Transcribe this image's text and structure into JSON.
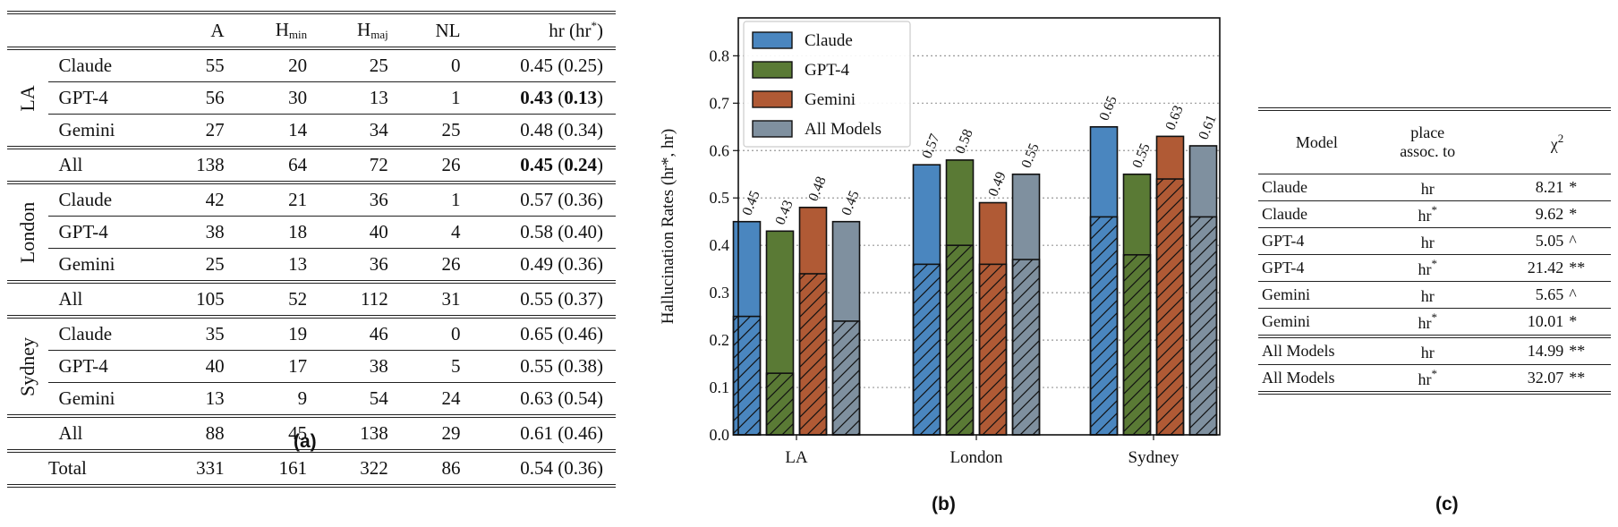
{
  "panel_a": {
    "caption": "(a)",
    "headers": {
      "a": "A",
      "hmin_main": "H",
      "hmin_sub": "min",
      "hmaj_main": "H",
      "hmaj_sub": "maj",
      "nl": "NL",
      "hr_main": "hr (hr",
      "hr_star": "*",
      "hr_close": ")"
    },
    "groups": [
      {
        "label": "LA",
        "rows": [
          {
            "model": "Claude",
            "a": "55",
            "hmin": "20",
            "hmaj": "25",
            "nl": "0",
            "hr": "0.45",
            "hrs": "0.25",
            "bold": false
          },
          {
            "model": "GPT-4",
            "a": "56",
            "hmin": "30",
            "hmaj": "13",
            "nl": "1",
            "hr": "0.43",
            "hrs": "0.13",
            "bold": true
          },
          {
            "model": "Gemini",
            "a": "27",
            "hmin": "14",
            "hmaj": "34",
            "nl": "25",
            "hr": "0.48",
            "hrs": "0.34",
            "bold": false
          },
          {
            "model": "All",
            "a": "138",
            "hmin": "64",
            "hmaj": "72",
            "nl": "26",
            "hr": "0.45",
            "hrs": "0.24",
            "bold": true
          }
        ]
      },
      {
        "label": "London",
        "rows": [
          {
            "model": "Claude",
            "a": "42",
            "hmin": "21",
            "hmaj": "36",
            "nl": "1",
            "hr": "0.57",
            "hrs": "0.36",
            "bold": false
          },
          {
            "model": "GPT-4",
            "a": "38",
            "hmin": "18",
            "hmaj": "40",
            "nl": "4",
            "hr": "0.58",
            "hrs": "0.40",
            "bold": false
          },
          {
            "model": "Gemini",
            "a": "25",
            "hmin": "13",
            "hmaj": "36",
            "nl": "26",
            "hr": "0.49",
            "hrs": "0.36",
            "bold": false
          },
          {
            "model": "All",
            "a": "105",
            "hmin": "52",
            "hmaj": "112",
            "nl": "31",
            "hr": "0.55",
            "hrs": "0.37",
            "bold": false
          }
        ]
      },
      {
        "label": "Sydney",
        "rows": [
          {
            "model": "Claude",
            "a": "35",
            "hmin": "19",
            "hmaj": "46",
            "nl": "0",
            "hr": "0.65",
            "hrs": "0.46",
            "bold": false
          },
          {
            "model": "GPT-4",
            "a": "40",
            "hmin": "17",
            "hmaj": "38",
            "nl": "5",
            "hr": "0.55",
            "hrs": "0.38",
            "bold": false
          },
          {
            "model": "Gemini",
            "a": "13",
            "hmin": "9",
            "hmaj": "54",
            "nl": "24",
            "hr": "0.63",
            "hrs": "0.54",
            "bold": false
          },
          {
            "model": "All",
            "a": "88",
            "hmin": "45",
            "hmaj": "138",
            "nl": "29",
            "hr": "0.61",
            "hrs": "0.46",
            "bold": false
          }
        ]
      }
    ],
    "total": {
      "model": "Total",
      "a": "331",
      "hmin": "161",
      "hmaj": "322",
      "nl": "86",
      "hr": "0.54",
      "hrs": "0.36"
    }
  },
  "chart_data": {
    "type": "bar",
    "caption": "(b)",
    "ylabel": "Hallucination Rates (hr*, hr)",
    "ylim": [
      0,
      0.88
    ],
    "yticks": [
      "0.0",
      "0.1",
      "0.2",
      "0.3",
      "0.4",
      "0.5",
      "0.6",
      "0.7",
      "0.8"
    ],
    "categories": [
      "LA",
      "London",
      "Sydney"
    ],
    "series": [
      {
        "name": "Claude",
        "color": "#4a86bf",
        "values": [
          0.45,
          0.57,
          0.65
        ],
        "hatched_values": [
          0.25,
          0.36,
          0.46
        ],
        "labels": [
          "0.45",
          "0.57",
          "0.65"
        ]
      },
      {
        "name": "GPT-4",
        "color": "#5a7a35",
        "values": [
          0.43,
          0.58,
          0.55
        ],
        "hatched_values": [
          0.13,
          0.4,
          0.38
        ],
        "labels": [
          "0.43",
          "0.58",
          "0.55"
        ]
      },
      {
        "name": "Gemini",
        "color": "#b05a35",
        "values": [
          0.48,
          0.49,
          0.63
        ],
        "hatched_values": [
          0.34,
          0.36,
          0.54
        ],
        "labels": [
          "0.48",
          "0.49",
          "0.63"
        ]
      },
      {
        "name": "All Models",
        "color": "#7f909f",
        "values": [
          0.45,
          0.55,
          0.61
        ],
        "hatched_values": [
          0.24,
          0.37,
          0.46
        ],
        "labels": [
          "0.45",
          "0.55",
          "0.61"
        ]
      }
    ],
    "grid": "horizontal dotted",
    "legend": "top-left"
  },
  "panel_c": {
    "caption": "(c)",
    "headers": {
      "model": "Model",
      "place1": "place",
      "place2": "assoc. to",
      "chi": "χ",
      "chi_sup": "2"
    },
    "rows": [
      {
        "model": "Claude",
        "place": "hr",
        "star": "",
        "chi": "8.21",
        "sig": "*"
      },
      {
        "model": "Claude",
        "place": "hr",
        "star": "*",
        "chi": "9.62",
        "sig": "*"
      },
      {
        "model": "GPT-4",
        "place": "hr",
        "star": "",
        "chi": "5.05",
        "sig": "^"
      },
      {
        "model": "GPT-4",
        "place": "hr",
        "star": "*",
        "chi": "21.42",
        "sig": "**"
      },
      {
        "model": "Gemini",
        "place": "hr",
        "star": "",
        "chi": "5.65",
        "sig": "^"
      },
      {
        "model": "Gemini",
        "place": "hr",
        "star": "*",
        "chi": "10.01",
        "sig": "*"
      },
      {
        "model": "All Models",
        "place": "hr",
        "star": "",
        "chi": "14.99",
        "sig": "**"
      },
      {
        "model": "All Models",
        "place": "hr",
        "star": "*",
        "chi": "32.07",
        "sig": "**"
      }
    ]
  }
}
